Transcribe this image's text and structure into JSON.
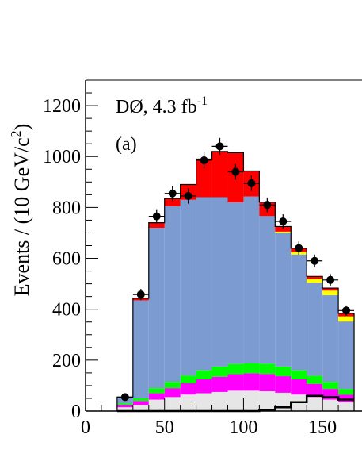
{
  "chart_data": {
    "type": "bar",
    "subtype": "stacked-histogram-with-data-points",
    "annotation_main": "DØ, 4.3 fb",
    "annotation_sup": "-1",
    "panel_label": "(a)",
    "ylabel_main": "Events / (10 GeV/c",
    "ylabel_sup": "2",
    "ylabel_end": ")",
    "xlabel": "",
    "x_ticks": [
      0,
      50,
      100,
      150
    ],
    "y_ticks": [
      0,
      200,
      400,
      600,
      800,
      1000,
      1200
    ],
    "xlim": [
      0,
      175
    ],
    "ylim": [
      0,
      1300
    ],
    "bin_edges": [
      20,
      30,
      40,
      50,
      60,
      70,
      80,
      90,
      100,
      110,
      120,
      130,
      140,
      150,
      160,
      170
    ],
    "colors": {
      "light_gray": "#e6e6e6",
      "magenta": "#ff00ff",
      "green": "#00ff00",
      "blue": "#7b9bd1",
      "yellow": "#ffff00",
      "red": "#ff0000",
      "outline": "#000000",
      "data": "#000000"
    },
    "stack_series": [
      {
        "key": "gray",
        "color_key": "light_gray",
        "values": [
          15,
          25,
          45,
          55,
          65,
          70,
          75,
          80,
          80,
          78,
          72,
          65,
          55,
          45,
          35
        ]
      },
      {
        "key": "magenta",
        "color_key": "magenta",
        "values": [
          10,
          15,
          25,
          35,
          45,
          55,
          60,
          65,
          68,
          68,
          65,
          60,
          52,
          42,
          30
        ]
      },
      {
        "key": "green",
        "color_key": "green",
        "values": [
          5,
          10,
          20,
          25,
          30,
          35,
          40,
          40,
          40,
          40,
          38,
          35,
          32,
          28,
          22
        ]
      },
      {
        "key": "blue",
        "color_key": "blue",
        "values": [
          25,
          385,
          630,
          690,
          690,
          680,
          665,
          635,
          655,
          580,
          525,
          455,
          365,
          340,
          265
        ]
      },
      {
        "key": "yellow",
        "color_key": "yellow",
        "values": [
          0,
          0,
          0,
          0,
          0,
          0,
          0,
          0,
          0,
          0,
          5,
          10,
          15,
          18,
          20
        ]
      },
      {
        "key": "red",
        "color_key": "red",
        "values": [
          0,
          8,
          20,
          30,
          60,
          150,
          180,
          195,
          100,
          55,
          20,
          15,
          10,
          10,
          12
        ]
      }
    ],
    "outline_series": {
      "key": "black-outline",
      "values": [
        0,
        0,
        0,
        0,
        0,
        0,
        0,
        0,
        0,
        5,
        15,
        35,
        60,
        55,
        45
      ]
    },
    "data_points": {
      "x": [
        25,
        35,
        45,
        55,
        65,
        75,
        85,
        95,
        105,
        115,
        125,
        135,
        145,
        155,
        165
      ],
      "y": [
        55,
        458,
        765,
        855,
        845,
        985,
        1040,
        940,
        895,
        810,
        745,
        640,
        590,
        515,
        395
      ],
      "err": [
        8,
        22,
        28,
        30,
        30,
        32,
        33,
        31,
        30,
        29,
        28,
        26,
        25,
        23,
        20
      ]
    }
  }
}
